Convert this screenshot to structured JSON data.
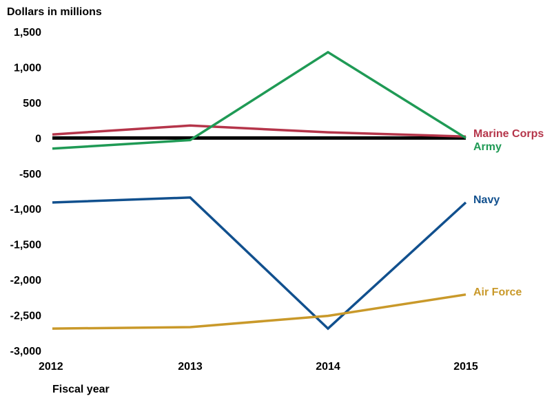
{
  "chart_data": {
    "type": "line",
    "ylabel": "Dollars in millions",
    "xlabel": "Fiscal year",
    "x": [
      "2012",
      "2013",
      "2014",
      "2015"
    ],
    "ylim": [
      -3000,
      1500
    ],
    "yticks": [
      1500,
      1000,
      500,
      0,
      -500,
      -1000,
      -1500,
      -2000,
      -2500,
      -3000
    ],
    "ytick_labels": [
      "1,500",
      "1,000",
      "500",
      "0",
      "-500",
      "-1,000",
      "-1,500",
      "-2,000",
      "-2,500",
      "-3,000"
    ],
    "zero_line": true,
    "grid": false,
    "legend": "direct labels at right",
    "series": [
      {
        "name": "Marine Corps",
        "color": "#b5354a",
        "values": [
          50,
          175,
          80,
          20
        ]
      },
      {
        "name": "Army",
        "color": "#1f9a55",
        "values": [
          -150,
          -30,
          1210,
          0
        ]
      },
      {
        "name": "Navy",
        "color": "#11508e",
        "values": [
          -910,
          -840,
          -2690,
          -910
        ]
      },
      {
        "name": "Air Force",
        "color": "#c9992a",
        "values": [
          -2690,
          -2670,
          -2510,
          -2210
        ]
      }
    ]
  }
}
